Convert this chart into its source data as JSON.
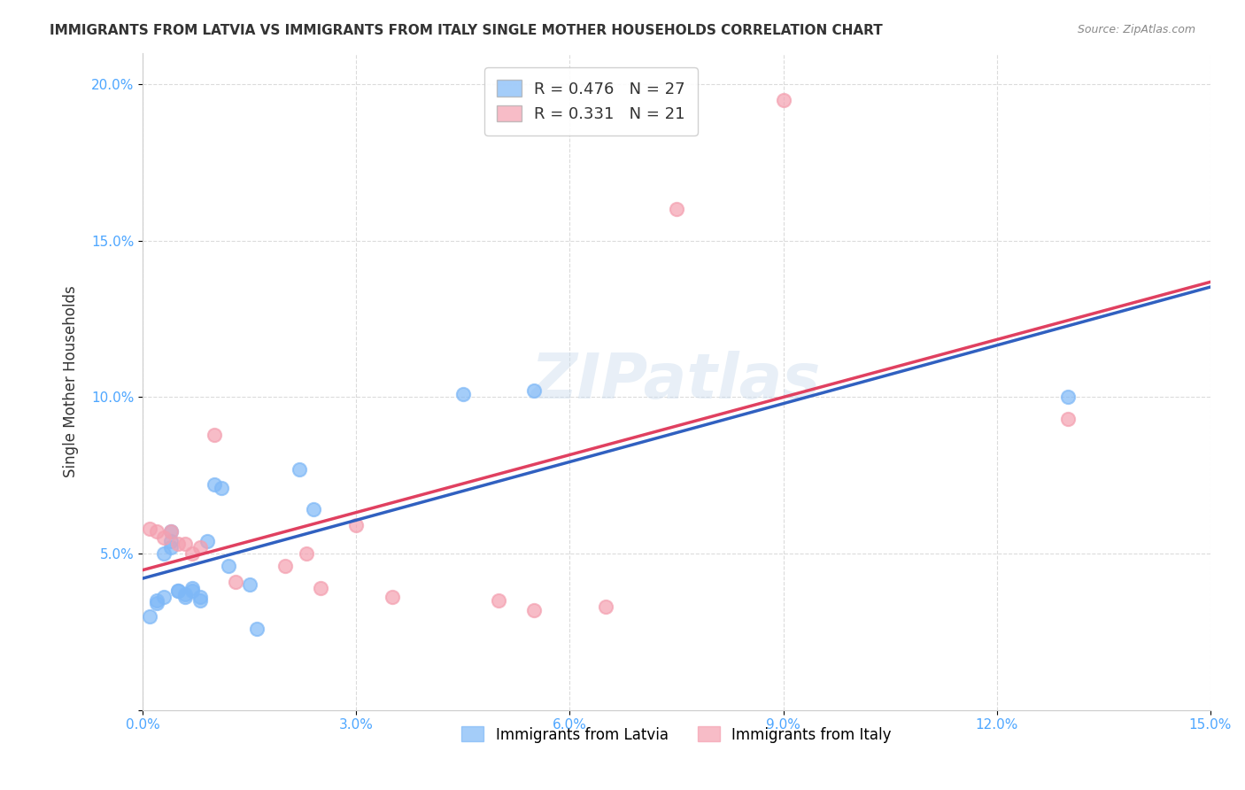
{
  "title": "IMMIGRANTS FROM LATVIA VS IMMIGRANTS FROM ITALY SINGLE MOTHER HOUSEHOLDS CORRELATION CHART",
  "source": "Source: ZipAtlas.com",
  "xlabel_color": "#4da6ff",
  "ylabel": "Single Mother Households",
  "xlim": [
    0.0,
    0.15
  ],
  "ylim": [
    0.0,
    0.21
  ],
  "x_ticks": [
    0.0,
    0.03,
    0.06,
    0.09,
    0.12,
    0.15
  ],
  "y_ticks": [
    0.0,
    0.05,
    0.1,
    0.15,
    0.2
  ],
  "x_tick_labels": [
    "0.0%",
    "3.0%",
    "6.0%",
    "9.0%",
    "12.0%",
    "15.0%"
  ],
  "y_tick_labels": [
    "",
    "5.0%",
    "10.0%",
    "15.0%",
    "20.0%"
  ],
  "legend_r_latvia": "R = 0.476",
  "legend_n_latvia": "N = 27",
  "legend_r_italy": "R = 0.331",
  "legend_n_italy": "N = 21",
  "latvia_color": "#7eb8f7",
  "italy_color": "#f4a0b0",
  "trendline_latvia_color": "#3060c0",
  "trendline_italy_color": "#e04060",
  "latvia_x": [
    0.001,
    0.002,
    0.002,
    0.003,
    0.003,
    0.004,
    0.004,
    0.004,
    0.005,
    0.005,
    0.006,
    0.006,
    0.007,
    0.007,
    0.008,
    0.008,
    0.009,
    0.01,
    0.011,
    0.012,
    0.015,
    0.016,
    0.022,
    0.024,
    0.045,
    0.055,
    0.13
  ],
  "latvia_y": [
    0.03,
    0.035,
    0.034,
    0.036,
    0.05,
    0.052,
    0.054,
    0.057,
    0.038,
    0.038,
    0.036,
    0.037,
    0.038,
    0.039,
    0.035,
    0.036,
    0.054,
    0.072,
    0.071,
    0.046,
    0.04,
    0.026,
    0.077,
    0.064,
    0.101,
    0.102,
    0.1
  ],
  "italy_x": [
    0.001,
    0.002,
    0.003,
    0.004,
    0.005,
    0.006,
    0.007,
    0.008,
    0.01,
    0.013,
    0.02,
    0.023,
    0.025,
    0.03,
    0.035,
    0.05,
    0.055,
    0.065,
    0.075,
    0.09,
    0.13
  ],
  "italy_y": [
    0.058,
    0.057,
    0.055,
    0.057,
    0.053,
    0.053,
    0.05,
    0.052,
    0.088,
    0.041,
    0.046,
    0.05,
    0.039,
    0.059,
    0.036,
    0.035,
    0.032,
    0.033,
    0.16,
    0.195,
    0.093
  ],
  "watermark": "ZIPatlas",
  "marker_size": 120,
  "background_color": "#ffffff",
  "grid_color": "#cccccc"
}
